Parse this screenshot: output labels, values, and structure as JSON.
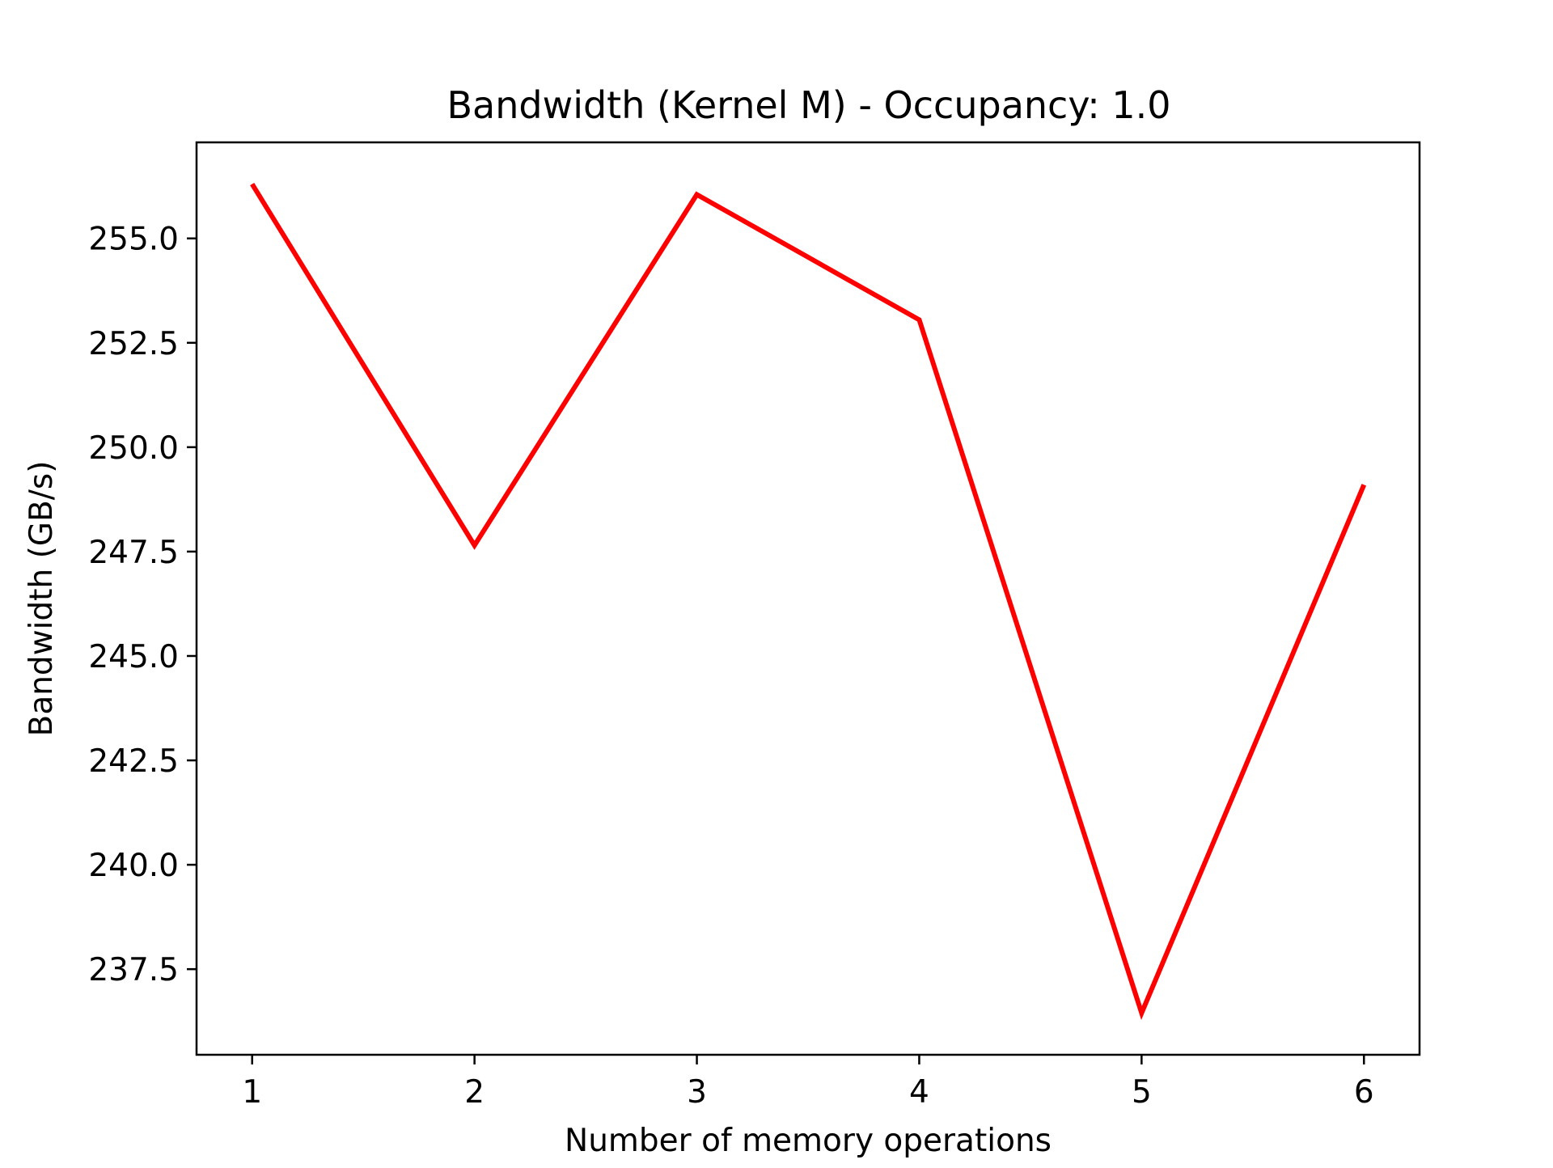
{
  "chart_data": {
    "type": "line",
    "title": "Bandwidth (Kernel M) - Occupancy:  1.0",
    "xlabel": "Number of memory operations",
    "ylabel": "Bandwidth (GB/s)",
    "x": [
      1,
      2,
      3,
      4,
      5,
      6
    ],
    "series": [
      {
        "values": [
          256.3,
          247.65,
          256.05,
          253.05,
          236.45,
          249.1
        ],
        "color": "#ff0000"
      }
    ],
    "xlim": [
      0.75,
      6.25
    ],
    "ylim": [
      235.45,
      257.3
    ],
    "xticks": [
      1,
      2,
      3,
      4,
      5,
      6
    ],
    "xtick_labels": [
      "1",
      "2",
      "3",
      "4",
      "5",
      "6"
    ],
    "yticks": [
      237.5,
      240.0,
      242.5,
      245.0,
      247.5,
      250.0,
      252.5,
      255.0
    ],
    "ytick_labels": [
      "237.5",
      "240.0",
      "242.5",
      "245.0",
      "247.5",
      "250.0",
      "252.5",
      "255.0"
    ],
    "grid": false,
    "legend": "none"
  }
}
